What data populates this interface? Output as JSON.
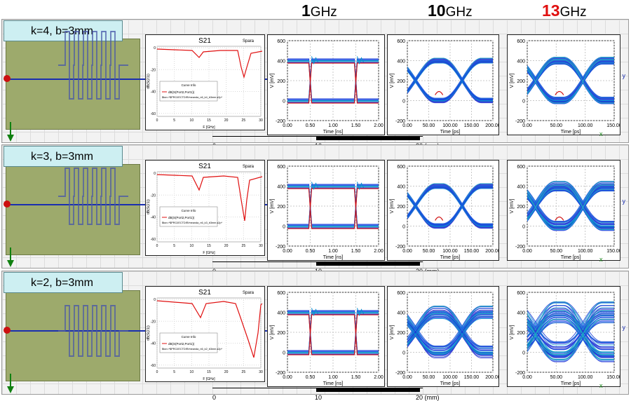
{
  "headers": [
    {
      "num": "1",
      "unit": "GHz",
      "color": "#000000"
    },
    {
      "num": "10",
      "unit": "GHz",
      "color": "#000000"
    },
    {
      "num": "13",
      "unit": "GHz",
      "color": "#e01010"
    }
  ],
  "rows": [
    {
      "label": "k=4, b=3mm",
      "meanders": 6
    },
    {
      "label": "k=3, b=3mm",
      "meanders": 6
    },
    {
      "label": "k=2, b=3mm",
      "meanders": 6
    }
  ],
  "s21": {
    "title": "S21",
    "tag": "Spara",
    "ylab": "dB(S(21))",
    "xlab": "F [GHz]",
    "xticks": [
      "0",
      "5",
      "10",
      "15",
      "20",
      "25",
      "30"
    ],
    "yticks": [
      "0",
      "-20",
      "-40",
      "-60"
    ],
    "legend_title": "Curve Info",
    "legend_item": "dB(S(Port2,Port1))",
    "legend_files": [
      "$ton=*$PROJECTDIR/meanda_n6_k4_b3mm.s2p*",
      "$ton=*$PROJECTDIR/meanda_n6_k3_b3mm.s2p*",
      "$ton=*$PROJECTDIR/meanda_n6_k2_b3mm.s2p*"
    ]
  },
  "eye1": {
    "xlab": "Time [ns]",
    "xticks": [
      "0.00",
      "0.50",
      "1.00",
      "1.50",
      "2.00"
    ],
    "yticks": [
      "600",
      "400",
      "200",
      "0",
      "-200"
    ],
    "ylab": "V [mV]"
  },
  "eye10": {
    "xlab": "Time [ps]",
    "xticks": [
      "0.00",
      "50.00",
      "100.00",
      "150.00",
      "200.00"
    ],
    "yticks": [
      "600",
      "400",
      "200",
      "0",
      "-200"
    ],
    "ylab": "V [mV]"
  },
  "eye13": {
    "xlab": "Time [ps]",
    "xticks": [
      "0.00",
      "50.00",
      "100.00",
      "150.00"
    ],
    "yticks": [
      "600",
      "400",
      "200",
      "0",
      "-200"
    ],
    "ylab": "V [mV]"
  },
  "scale": {
    "t0": "0",
    "t1": "10",
    "t2": "20 (mm)"
  },
  "axis": {
    "y": "y",
    "x": "x"
  }
}
